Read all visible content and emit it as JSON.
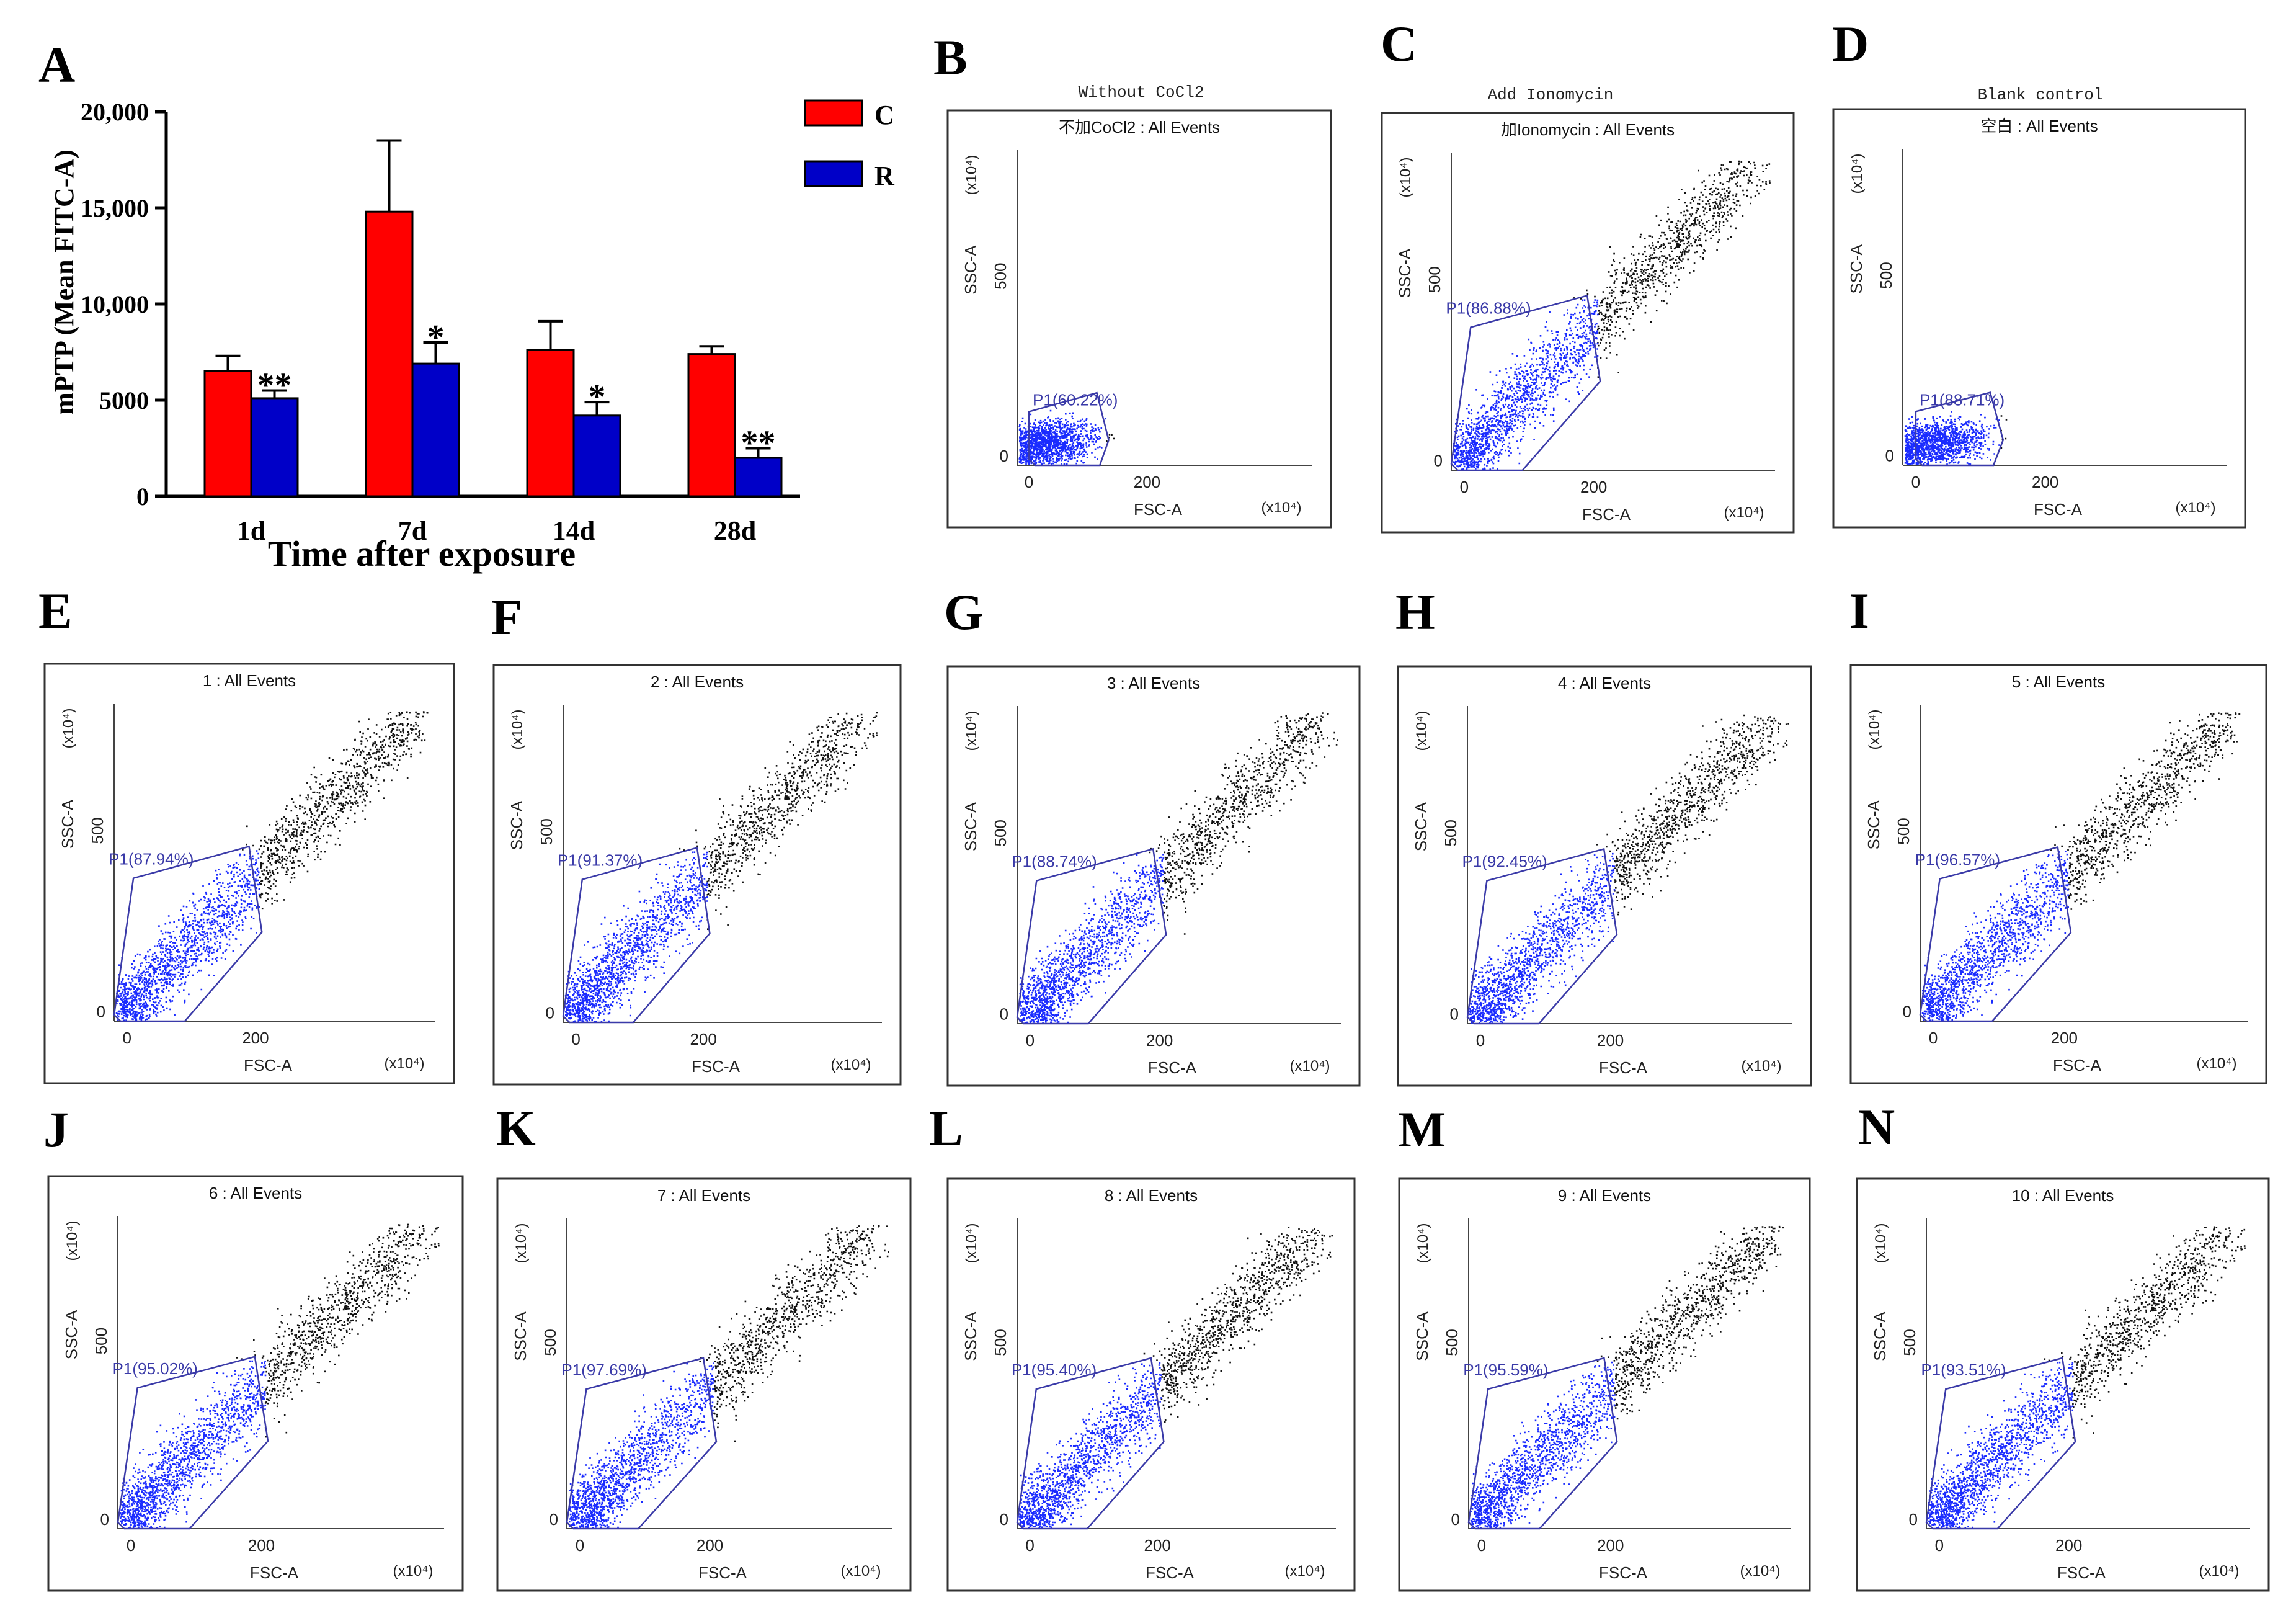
{
  "panel_a": {
    "letter": "A",
    "chart_data": {
      "type": "bar",
      "categories": [
        "1d",
        "7d",
        "14d",
        "28d"
      ],
      "series": [
        {
          "name": "C",
          "color": "#ff0000",
          "values": [
            6500,
            14800,
            7600,
            7400
          ],
          "errors": [
            800,
            3700,
            1500,
            400
          ]
        },
        {
          "name": "R",
          "color": "#0000c8",
          "values": [
            5100,
            6900,
            4200,
            2000
          ],
          "errors": [
            400,
            1100,
            700,
            500
          ]
        }
      ],
      "significance": [
        {
          "series": "R",
          "category": "1d",
          "label": "**"
        },
        {
          "series": "R",
          "category": "7d",
          "label": "*"
        },
        {
          "series": "R",
          "category": "14d",
          "label": "*"
        },
        {
          "series": "R",
          "category": "28d",
          "label": "**"
        }
      ],
      "xlabel": "Time after exposure",
      "ylabel": "mPTP (Mean FITC-A)",
      "ylim": [
        0,
        20000
      ],
      "yticks": [
        0,
        5000,
        10000,
        15000,
        20000
      ],
      "ytick_labels": [
        "0",
        "5000",
        "10,000",
        "15,000",
        "20,000"
      ],
      "legend_position": "top-right",
      "grid": false
    }
  },
  "flow_common": {
    "xaxis_label": "FSC-A",
    "yaxis_label": "SSC-A",
    "x_multiplier": "(x10⁴)",
    "y_multiplier": "(x10⁴)",
    "xtick_labels": [
      "0",
      "200"
    ],
    "ytick_labels": [
      "0",
      "500"
    ],
    "gate_name": "P1",
    "gate_color": "#3a3aa8",
    "gated_color": "#1a2bff",
    "ungated_color": "#111111"
  },
  "flow_panels": [
    {
      "letter": "B",
      "caption": "Without CoCl2",
      "plot_title": "不加CoCl2 : All Events",
      "gate_percent": "60.22%",
      "gate_type": "small"
    },
    {
      "letter": "C",
      "caption": "Add Ionomycin",
      "plot_title": "加Ionomycin : All Events",
      "gate_percent": "86.88%",
      "gate_type": "large"
    },
    {
      "letter": "D",
      "caption": "Blank control",
      "plot_title": "空白 : All Events",
      "gate_percent": "88.71%",
      "gate_type": "small"
    },
    {
      "letter": "E",
      "caption": "",
      "plot_title": "1 : All Events",
      "gate_percent": "87.94%",
      "gate_type": "large"
    },
    {
      "letter": "F",
      "caption": "",
      "plot_title": "2 : All Events",
      "gate_percent": "91.37%",
      "gate_type": "large"
    },
    {
      "letter": "G",
      "caption": "",
      "plot_title": "3 : All Events",
      "gate_percent": "88.74%",
      "gate_type": "large"
    },
    {
      "letter": "H",
      "caption": "",
      "plot_title": "4 : All Events",
      "gate_percent": "92.45%",
      "gate_type": "large"
    },
    {
      "letter": "I",
      "caption": "",
      "plot_title": "5 : All Events",
      "gate_percent": "96.57%",
      "gate_type": "large"
    },
    {
      "letter": "J",
      "caption": "",
      "plot_title": "6 : All Events",
      "gate_percent": "95.02%",
      "gate_type": "large"
    },
    {
      "letter": "K",
      "caption": "",
      "plot_title": "7 : All Events",
      "gate_percent": "97.69%",
      "gate_type": "large"
    },
    {
      "letter": "L",
      "caption": "",
      "plot_title": "8 : All Events",
      "gate_percent": "95.40%",
      "gate_type": "large"
    },
    {
      "letter": "M",
      "caption": "",
      "plot_title": "9 : All Events",
      "gate_percent": "95.59%",
      "gate_type": "large"
    },
    {
      "letter": "N",
      "caption": "",
      "plot_title": "10 : All Events",
      "gate_percent": "93.51%",
      "gate_type": "large"
    }
  ]
}
